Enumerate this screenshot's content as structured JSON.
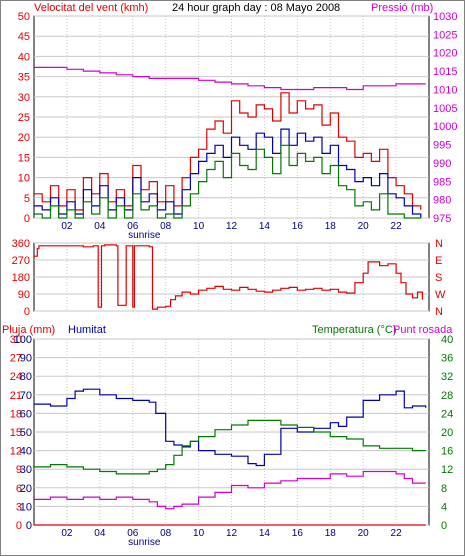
{
  "colors": {
    "red": "#e00000",
    "magenta": "#d000d0",
    "blue": "#0000b0",
    "green": "#007a00",
    "navy": "#000080",
    "grid": "#c8c8c8",
    "axis": "#000000",
    "border": "#000000"
  },
  "chart_data": [
    {
      "type": "line",
      "title": "24 hour graph day : 08 Mayo 2008",
      "left_label": "Velocitat del vent (kmh)",
      "right_label": "Pressió (mb)",
      "x_ticks": [
        "02",
        "04",
        "06",
        "08",
        "10",
        "12",
        "14",
        "16",
        "18",
        "20",
        "22"
      ],
      "x_annotation": "sunrise",
      "y_left_ticks": [
        "0",
        "5",
        "10",
        "15",
        "20",
        "25",
        "30",
        "35",
        "40",
        "45",
        "50"
      ],
      "y_right_ticks": [
        "975",
        "980",
        "985",
        "990",
        "995",
        "1000",
        "1005",
        "1010",
        "1015",
        "1020",
        "1025",
        "1030"
      ],
      "ylim_left": [
        0,
        50
      ],
      "ylim_right": [
        975,
        1030
      ],
      "xlim": [
        0,
        24
      ],
      "series": [
        {
          "axis": "right",
          "color": "magenta",
          "x": [
            0,
            1,
            2,
            3,
            4,
            5,
            6,
            7,
            8,
            9,
            10,
            11,
            12,
            13,
            14,
            15,
            16,
            17,
            18,
            19,
            20,
            21,
            22,
            23,
            23.8
          ],
          "y": [
            1016,
            1016,
            1015.5,
            1015,
            1014.5,
            1014,
            1013.5,
            1013,
            1013,
            1013,
            1012.5,
            1012,
            1011.5,
            1011,
            1010.5,
            1010,
            1010,
            1010.5,
            1010.5,
            1010,
            1011,
            1011,
            1011.5,
            1011.5,
            1011.5
          ]
        },
        {
          "axis": "left",
          "color": "red",
          "x": [
            0,
            0.5,
            1,
            1.5,
            2,
            2.5,
            3,
            3.5,
            4,
            4.5,
            5,
            5.5,
            6,
            6.5,
            7,
            7.5,
            8,
            8.5,
            9,
            9.5,
            10,
            10.5,
            11,
            11.5,
            12,
            12.5,
            13,
            13.5,
            14,
            14.5,
            15,
            15.5,
            16,
            16.5,
            17,
            17.5,
            18,
            18.5,
            19,
            19.5,
            20,
            20.5,
            21,
            21.5,
            22,
            22.5,
            23,
            23.5
          ],
          "y": [
            6,
            4,
            8,
            3,
            7,
            2,
            10,
            6,
            11,
            4,
            7,
            3,
            13,
            7,
            9,
            4,
            8,
            3,
            10,
            15,
            17,
            22,
            24,
            21,
            29,
            26,
            25,
            28,
            27,
            24,
            31,
            26,
            29,
            27,
            28,
            23,
            26,
            20,
            19,
            15,
            16,
            14,
            17,
            10,
            8,
            6,
            3,
            2
          ]
        },
        {
          "axis": "left",
          "color": "blue",
          "x": [
            0,
            0.5,
            1,
            1.5,
            2,
            2.5,
            3,
            3.5,
            4,
            4.5,
            5,
            5.5,
            6,
            6.5,
            7,
            7.5,
            8,
            8.5,
            9,
            9.5,
            10,
            10.5,
            11,
            11.5,
            12,
            12.5,
            13,
            13.5,
            14,
            14.5,
            15,
            15.5,
            16,
            16.5,
            17,
            17.5,
            18,
            18.5,
            19,
            19.5,
            20,
            20.5,
            21,
            21.5,
            22,
            22.5,
            23,
            23.5
          ],
          "y": [
            3,
            2,
            5,
            1,
            4,
            1,
            7,
            3,
            8,
            2,
            5,
            2,
            10,
            4,
            6,
            2,
            4,
            1,
            7,
            11,
            14,
            16,
            18,
            15,
            20,
            18,
            17,
            21,
            20,
            16,
            22,
            18,
            21,
            19,
            20,
            16,
            18,
            13,
            12,
            9,
            10,
            8,
            11,
            6,
            5,
            3,
            1,
            0
          ]
        },
        {
          "axis": "left",
          "color": "green",
          "x": [
            0,
            0.5,
            1,
            1.5,
            2,
            2.5,
            3,
            3.5,
            4,
            4.5,
            5,
            5.5,
            6,
            6.5,
            7,
            7.5,
            8,
            8.5,
            9,
            9.5,
            10,
            10.5,
            11,
            11.5,
            12,
            12.5,
            13,
            13.5,
            14,
            14.5,
            15,
            15.5,
            16,
            16.5,
            17,
            17.5,
            18,
            18.5,
            19,
            19.5,
            20,
            20.5,
            21,
            21.5,
            22,
            22.5,
            23,
            23.5
          ],
          "y": [
            1,
            0,
            3,
            0,
            2,
            0,
            4,
            1,
            5,
            0,
            3,
            0,
            6,
            2,
            3,
            0,
            1,
            0,
            3,
            6,
            9,
            12,
            14,
            10,
            16,
            13,
            12,
            17,
            15,
            11,
            18,
            13,
            16,
            14,
            15,
            11,
            13,
            8,
            7,
            3,
            4,
            2,
            6,
            1,
            1,
            0,
            0,
            0
          ]
        }
      ]
    },
    {
      "type": "line",
      "x_ticks": [
        "02",
        "04",
        "06",
        "08",
        "10",
        "12",
        "14",
        "16",
        "18",
        "20",
        "22"
      ],
      "x_annotation": "sunrise",
      "y_left_ticks": [
        "0",
        "90",
        "180",
        "270",
        "360"
      ],
      "y_right_ticks": [
        "N",
        "E",
        "S",
        "W",
        "N"
      ],
      "ylim": [
        0,
        360
      ],
      "xlim": [
        0,
        24
      ],
      "series": [
        {
          "color": "red",
          "x": [
            0,
            0.2,
            0.3,
            2,
            3,
            3.6,
            3.8,
            3.9,
            4.1,
            4.3,
            5,
            5.1,
            5.6,
            5.8,
            6,
            6.1,
            7.0,
            7.2,
            7.5,
            8,
            8.3,
            8.6,
            9,
            9.5,
            10,
            10.5,
            11,
            11.5,
            12,
            12.5,
            13,
            13.5,
            14,
            14.5,
            15,
            15.5,
            16,
            16.5,
            17,
            17.5,
            18,
            18.5,
            19,
            19.5,
            20,
            20.3,
            21,
            21.5,
            22,
            22.3,
            22.6,
            23,
            23.3,
            23.6
          ],
          "y": [
            290,
            330,
            345,
            345,
            340,
            345,
            345,
            20,
            345,
            350,
            345,
            30,
            345,
            345,
            20,
            345,
            340,
            10,
            20,
            25,
            60,
            80,
            100,
            90,
            110,
            120,
            130,
            115,
            110,
            125,
            115,
            105,
            100,
            110,
            120,
            125,
            110,
            115,
            120,
            110,
            115,
            100,
            95,
            150,
            200,
            260,
            240,
            250,
            200,
            150,
            90,
            70,
            100,
            60
          ]
        }
      ]
    },
    {
      "type": "line",
      "title": "",
      "left_label": "Pluja (mm)",
      "left2_label": "Humitat",
      "right_label": "Temperatura (°C)",
      "right2_label": "Punt rosada",
      "x_ticks": [
        "02",
        "04",
        "06",
        "08",
        "10",
        "12",
        "14",
        "16",
        "18",
        "20",
        "22"
      ],
      "x_annotation": "sunrise",
      "y_left_rain_ticks": [
        "0",
        "3",
        "6",
        "9",
        "12",
        "15",
        "18",
        "21",
        "24",
        "27",
        "30"
      ],
      "y_left_humidity_ticks": [
        "0",
        "10",
        "20",
        "30",
        "40",
        "50",
        "60",
        "70",
        "80",
        "90",
        "100"
      ],
      "y_right_ticks": [
        "0",
        "4",
        "8",
        "12",
        "16",
        "20",
        "24",
        "28",
        "32",
        "36",
        "40"
      ],
      "ylim_humidity": [
        0,
        100
      ],
      "ylim_temp": [
        0,
        40
      ],
      "ylim_rain": [
        0,
        30
      ],
      "xlim": [
        0,
        24
      ],
      "series": [
        {
          "name": "Humitat",
          "axis": "humidity",
          "color": "blue",
          "x": [
            0,
            1,
            2,
            2.5,
            3,
            4,
            5,
            6,
            7,
            7.4,
            8,
            8.5,
            9,
            9.5,
            10,
            11,
            12,
            13,
            13.5,
            14,
            15,
            16,
            17,
            18,
            18.5,
            19,
            20,
            21,
            22,
            22.5,
            23,
            23.8
          ],
          "y": [
            65,
            64,
            68,
            72,
            73,
            70,
            68,
            67,
            66,
            60,
            45,
            43,
            42,
            45,
            40,
            38,
            37,
            33,
            32,
            38,
            52,
            50,
            52,
            55,
            53,
            58,
            67,
            70,
            72,
            63,
            64,
            63
          ]
        },
        {
          "name": "Temperatura",
          "axis": "temp",
          "color": "green",
          "x": [
            0,
            1,
            2,
            3,
            4,
            5,
            6,
            7,
            7.5,
            8,
            8.5,
            9,
            9.5,
            10,
            11,
            12,
            13,
            14,
            15,
            16,
            17,
            18,
            19,
            20,
            21,
            22,
            23,
            23.8
          ],
          "y": [
            12.5,
            13,
            12.5,
            12,
            11.5,
            11,
            11,
            11.5,
            12,
            13,
            15,
            17,
            18,
            19,
            20.5,
            21.5,
            22.5,
            22.5,
            21.5,
            21,
            20,
            19,
            18.5,
            17,
            16.5,
            16.5,
            16,
            16
          ]
        },
        {
          "name": "Punt rosada",
          "axis": "temp",
          "color": "magenta",
          "x": [
            0,
            1,
            2,
            3,
            4,
            5,
            6,
            7,
            7.5,
            8,
            8.5,
            9,
            10,
            11,
            12,
            13,
            14,
            15,
            16,
            17,
            18,
            19,
            20,
            21,
            22,
            22.5,
            23,
            23.8
          ],
          "y": [
            5.5,
            6,
            5.5,
            6,
            5.5,
            6,
            5.5,
            5,
            4,
            3.5,
            4,
            4.5,
            6,
            7,
            8.5,
            8,
            9,
            9.5,
            10,
            10,
            11,
            10.5,
            11.5,
            11.5,
            11,
            10,
            9,
            9
          ]
        },
        {
          "name": "Pluja",
          "axis": "rain",
          "color": "red",
          "x": [
            0,
            23.8
          ],
          "y": [
            0,
            0
          ]
        }
      ]
    }
  ]
}
